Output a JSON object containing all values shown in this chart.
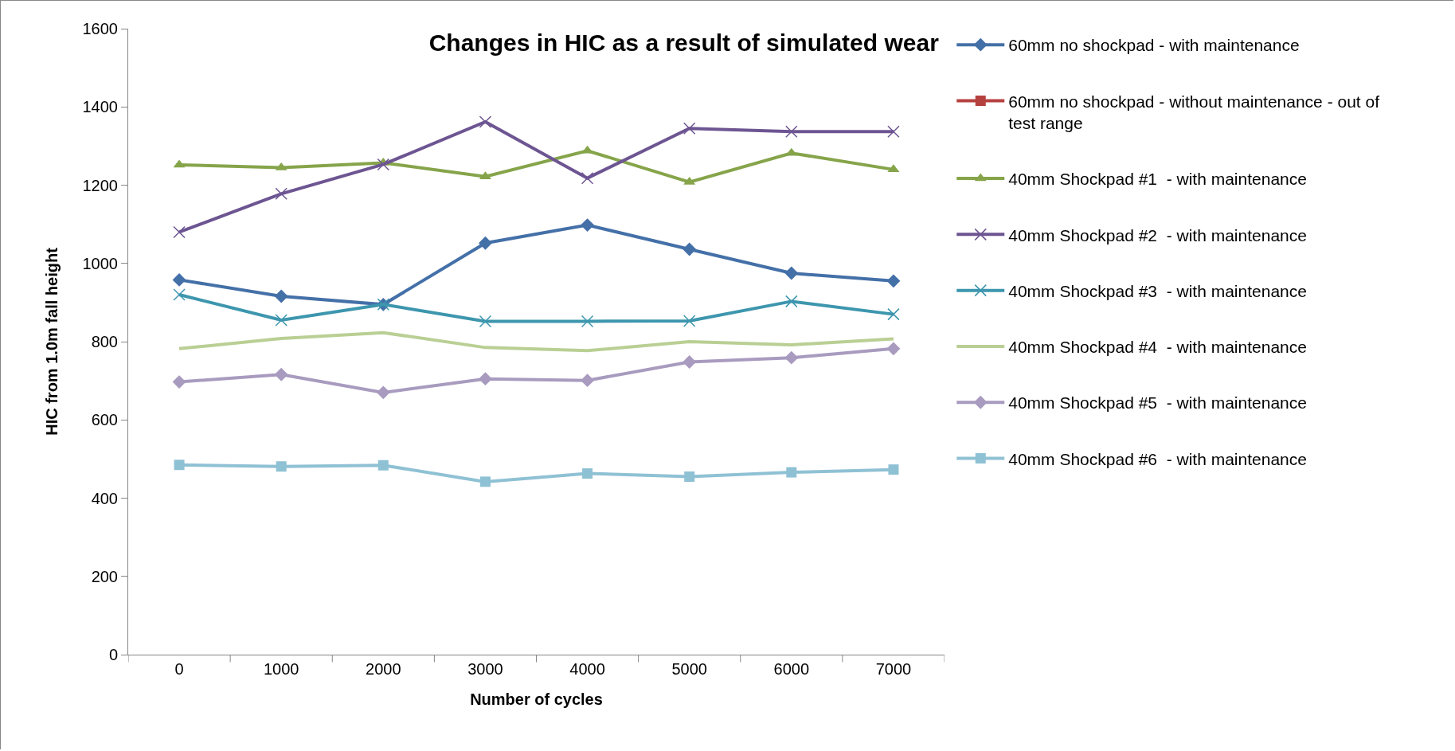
{
  "chart_data": {
    "type": "line",
    "title": "Changes in HIC as a result of simulated wear",
    "xlabel": "Number of cycles",
    "ylabel": "HIC from 1.0m fall height",
    "categories": [
      "0",
      "1000",
      "2000",
      "3000",
      "4000",
      "5000",
      "6000",
      "7000"
    ],
    "ylim": [
      0,
      1600
    ],
    "yticks": [
      0,
      200,
      400,
      600,
      800,
      1000,
      1200,
      1400,
      1600
    ],
    "grid": false,
    "legend": "right",
    "line_style": "solid",
    "series": [
      {
        "name": "60mm no shockpad - with maintenance",
        "color": "#4470a8",
        "marker": "diamond",
        "values": [
          958,
          916,
          895,
          1052,
          1098,
          1036,
          975,
          955
        ]
      },
      {
        "name": "60mm no shockpad - without maintenance - out of test range",
        "color": "#b5413f",
        "marker": "square",
        "values": [
          null,
          null,
          null,
          null,
          null,
          null,
          null,
          null
        ]
      },
      {
        "name": "40mm Shockpad #1  - with maintenance",
        "color": "#86a44a",
        "marker": "triangle",
        "values": [
          1252,
          1245,
          1257,
          1222,
          1288,
          1208,
          1282,
          1240
        ]
      },
      {
        "name": "40mm Shockpad #2  - with maintenance",
        "color": "#6d5592",
        "marker": "cross",
        "values": [
          1080,
          1178,
          1253,
          1362,
          1218,
          1345,
          1337,
          1337
        ]
      },
      {
        "name": "40mm Shockpad #3  - with maintenance",
        "color": "#3d96ae",
        "marker": "cross",
        "values": [
          920,
          855,
          895,
          852,
          852,
          853,
          903,
          870
        ]
      },
      {
        "name": "40mm Shockpad #4  - with maintenance",
        "color": "#b9cf94",
        "marker": "none",
        "values": [
          782,
          808,
          823,
          785,
          777,
          800,
          792,
          807
        ]
      },
      {
        "name": "40mm Shockpad #5  - with maintenance",
        "color": "#a89bbf",
        "marker": "diamond",
        "values": [
          697,
          716,
          670,
          705,
          701,
          748,
          759,
          782
        ]
      },
      {
        "name": "40mm Shockpad #6  - with maintenance",
        "color": "#8fc1d4",
        "marker": "square",
        "values": [
          485,
          481,
          484,
          442,
          463,
          455,
          466,
          473
        ]
      }
    ]
  }
}
